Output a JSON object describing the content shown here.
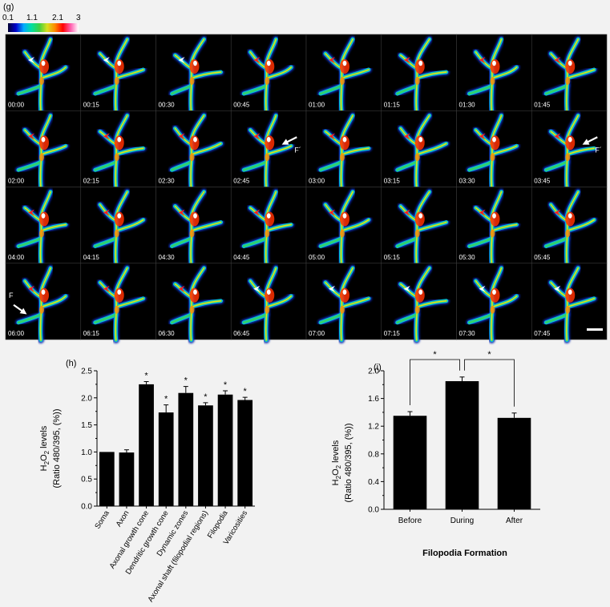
{
  "panel_g": {
    "label": "(g)",
    "colorbar_ticks": [
      "0.1",
      "1.1",
      "2.1",
      "3"
    ],
    "colorbar_colors": [
      "#000033",
      "#0000cc",
      "#00aaff",
      "#00e0a0",
      "#40d040",
      "#d8e020",
      "#ff8800",
      "#ff0000",
      "#ff5fb0",
      "#ffffff"
    ],
    "timestamps": [
      "00:00",
      "00:15",
      "00:30",
      "00:45",
      "01:00",
      "01:15",
      "01:30",
      "01:45",
      "02:00",
      "02:15",
      "02:30",
      "02:45",
      "03:00",
      "03:15",
      "03:30",
      "03:45",
      "04:00",
      "04:15",
      "04:30",
      "04:45",
      "05:00",
      "05:15",
      "05:30",
      "05:45",
      "06:00",
      "06:15",
      "06:30",
      "06:45",
      "07:00",
      "07:15",
      "07:30",
      "07:45"
    ],
    "arrowhead_colors": [
      "white",
      "white",
      "white",
      "red",
      "red",
      "red",
      "red",
      "red",
      "red",
      "red",
      "red",
      "red",
      "red",
      "red",
      "red",
      "red",
      "red",
      "red",
      "red",
      "red",
      "red",
      "red",
      "red",
      "red",
      "red",
      "red",
      "red",
      "white",
      "white",
      "white",
      "white",
      "white"
    ],
    "annotations": [
      {
        "frame": 11,
        "text": "F´"
      },
      {
        "frame": 15,
        "text": "F´"
      },
      {
        "frame": 24,
        "text": "F"
      }
    ]
  },
  "chart_data": [
    {
      "panel": "(h)",
      "type": "bar",
      "categories": [
        "Soma",
        "Axon",
        "Axonal growth cone",
        "Dendritic growth cone",
        "Dynamic zones",
        "Axonal shaft (filopodial regions)",
        "Filopodia",
        "Varicosities"
      ],
      "values": [
        1.0,
        0.99,
        2.25,
        1.73,
        2.09,
        1.86,
        2.06,
        1.96
      ],
      "errors": [
        0.0,
        0.05,
        0.05,
        0.14,
        0.12,
        0.05,
        0.07,
        0.05
      ],
      "significance": [
        "",
        "",
        "*",
        "*",
        "*",
        "*",
        "*",
        "*"
      ],
      "ylabel_line1": "H2O2 levels",
      "ylabel_line2": "(Ratio 480/395, (%))",
      "yticks": [
        "0.0",
        "0.5",
        "1.0",
        "1.5",
        "2.0",
        "2.5"
      ],
      "ylim": [
        0,
        2.5
      ],
      "bar_color": "#000000"
    },
    {
      "panel": "(i)",
      "type": "bar",
      "categories": [
        "Before",
        "During",
        "After"
      ],
      "values": [
        1.35,
        1.85,
        1.32
      ],
      "errors": [
        0.06,
        0.06,
        0.07
      ],
      "comparisons": [
        "*",
        "*"
      ],
      "xlabel": "Filopodia Formation",
      "ylabel_line1": "H2O2 levels",
      "ylabel_line2": "(Ratio 480/395, (%))",
      "yticks": [
        "0.0",
        "0.4",
        "0.8",
        "1.2",
        "1.6",
        "2.0"
      ],
      "ylim": [
        0,
        2.0
      ],
      "bar_color": "#000000"
    }
  ]
}
